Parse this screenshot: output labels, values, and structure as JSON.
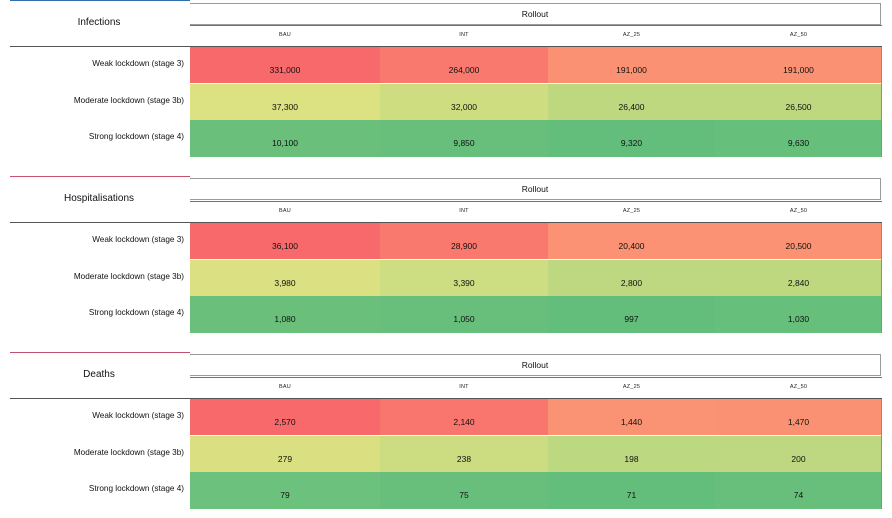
{
  "column_group_label": "Rollout",
  "columns": [
    "BAU",
    "INT",
    "AZ_25",
    "AZ_50"
  ],
  "row_labels": [
    "Weak lockdown (stage 3)",
    "Moderate lockdown (stage 3b)",
    "Strong lockdown (stage 4)"
  ],
  "colors": {
    "heat_scale": [
      "#63be7b",
      "#ffeb84",
      "#f8696b"
    ],
    "accent_lines": [
      "#2f6fb0",
      "#c9506e",
      "#c0506e"
    ]
  },
  "chart_data": [
    {
      "type": "heatmap",
      "title": "Infections",
      "categories": [
        "BAU",
        "INT",
        "AZ_25",
        "AZ_50"
      ],
      "rows": [
        "Weak lockdown (stage 3)",
        "Moderate lockdown (stage 3b)",
        "Strong lockdown (stage 4)"
      ],
      "values": [
        [
          331000,
          264000,
          191000,
          191000
        ],
        [
          37300,
          32000,
          26400,
          26500
        ],
        [
          10100,
          9850,
          9320,
          9630
        ]
      ],
      "display": [
        [
          "331,000",
          "264,000",
          "191,000",
          "191,000"
        ],
        [
          "37,300",
          "32,000",
          "26,400",
          "26,500"
        ],
        [
          "10,100",
          "9,850",
          "9,320",
          "9,630"
        ]
      ]
    },
    {
      "type": "heatmap",
      "title": "Hospitalisations",
      "categories": [
        "BAU",
        "INT",
        "AZ_25",
        "AZ_50"
      ],
      "rows": [
        "Weak lockdown (stage 3)",
        "Moderate lockdown (stage 3b)",
        "Strong lockdown (stage 4)"
      ],
      "values": [
        [
          36100,
          28900,
          20400,
          20500
        ],
        [
          3980,
          3390,
          2800,
          2840
        ],
        [
          1080,
          1050,
          997,
          1030
        ]
      ],
      "display": [
        [
          "36,100",
          "28,900",
          "20,400",
          "20,500"
        ],
        [
          "3,980",
          "3,390",
          "2,800",
          "2,840"
        ],
        [
          "1,080",
          "1,050",
          "997",
          "1,030"
        ]
      ]
    },
    {
      "type": "heatmap",
      "title": "Deaths",
      "categories": [
        "BAU",
        "INT",
        "AZ_25",
        "AZ_50"
      ],
      "rows": [
        "Weak lockdown (stage 3)",
        "Moderate lockdown (stage 3b)",
        "Strong lockdown (stage 4)"
      ],
      "values": [
        [
          2570,
          2140,
          1440,
          1470
        ],
        [
          279,
          238,
          198,
          200
        ],
        [
          79,
          75,
          71,
          74
        ]
      ],
      "display": [
        [
          "2,570",
          "2,140",
          "1,440",
          "1,470"
        ],
        [
          "279",
          "238",
          "198",
          "200"
        ],
        [
          "79",
          "75",
          "71",
          "74"
        ]
      ]
    }
  ]
}
